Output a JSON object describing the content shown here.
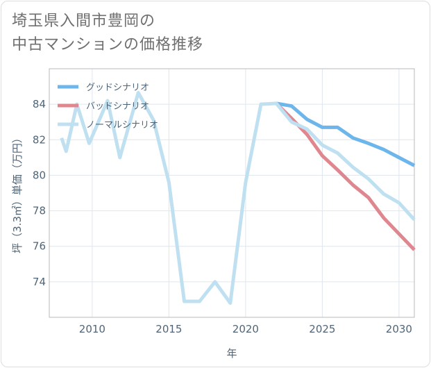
{
  "title": {
    "line1": "埼玉県入間市豊岡の",
    "line2": "中古マンションの価格推移"
  },
  "chart_data": {
    "type": "line",
    "xlabel": "年",
    "ylabel": "坪（3.3㎡）単価（万円）",
    "xlim": [
      2007.2,
      2031
    ],
    "ylim": [
      72,
      86
    ],
    "xticks": [
      2010,
      2015,
      2020,
      2025,
      2030
    ],
    "yticks": [
      74,
      76,
      78,
      80,
      82,
      84
    ],
    "grid": true,
    "legend_position": "top-left",
    "series": [
      {
        "name": "グッドシナリオ",
        "color": "#6cb6ec",
        "x": [
          2022,
          2023,
          2024,
          2025,
          2026,
          2027,
          2028,
          2029,
          2030,
          2031
        ],
        "y": [
          84.05,
          83.9,
          83.15,
          82.7,
          82.7,
          82.1,
          81.8,
          81.45,
          81.0,
          80.55
        ]
      },
      {
        "name": "バッドシナリオ",
        "color": "#e0868f",
        "x": [
          2022,
          2023,
          2024,
          2025,
          2026,
          2027,
          2028,
          2029,
          2030,
          2031
        ],
        "y": [
          84.05,
          83.2,
          82.3,
          81.1,
          80.3,
          79.45,
          78.75,
          77.6,
          76.7,
          75.8
        ]
      },
      {
        "name": "ノーマルシナリオ",
        "color": "#bfe0f0",
        "x": [
          2008,
          2008.3,
          2009,
          2009.8,
          2011,
          2011.8,
          2013,
          2014,
          2015,
          2016,
          2017,
          2018,
          2019,
          2020,
          2021,
          2022,
          2023,
          2024,
          2025,
          2026,
          2027,
          2028,
          2029,
          2030,
          2031
        ],
        "y": [
          82.1,
          81.35,
          84.0,
          81.8,
          84.2,
          81.0,
          84.65,
          83.1,
          79.6,
          72.9,
          72.9,
          74.0,
          72.8,
          79.6,
          84.0,
          84.05,
          83.0,
          82.6,
          81.7,
          81.25,
          80.45,
          79.8,
          78.95,
          78.45,
          77.5
        ]
      }
    ]
  }
}
